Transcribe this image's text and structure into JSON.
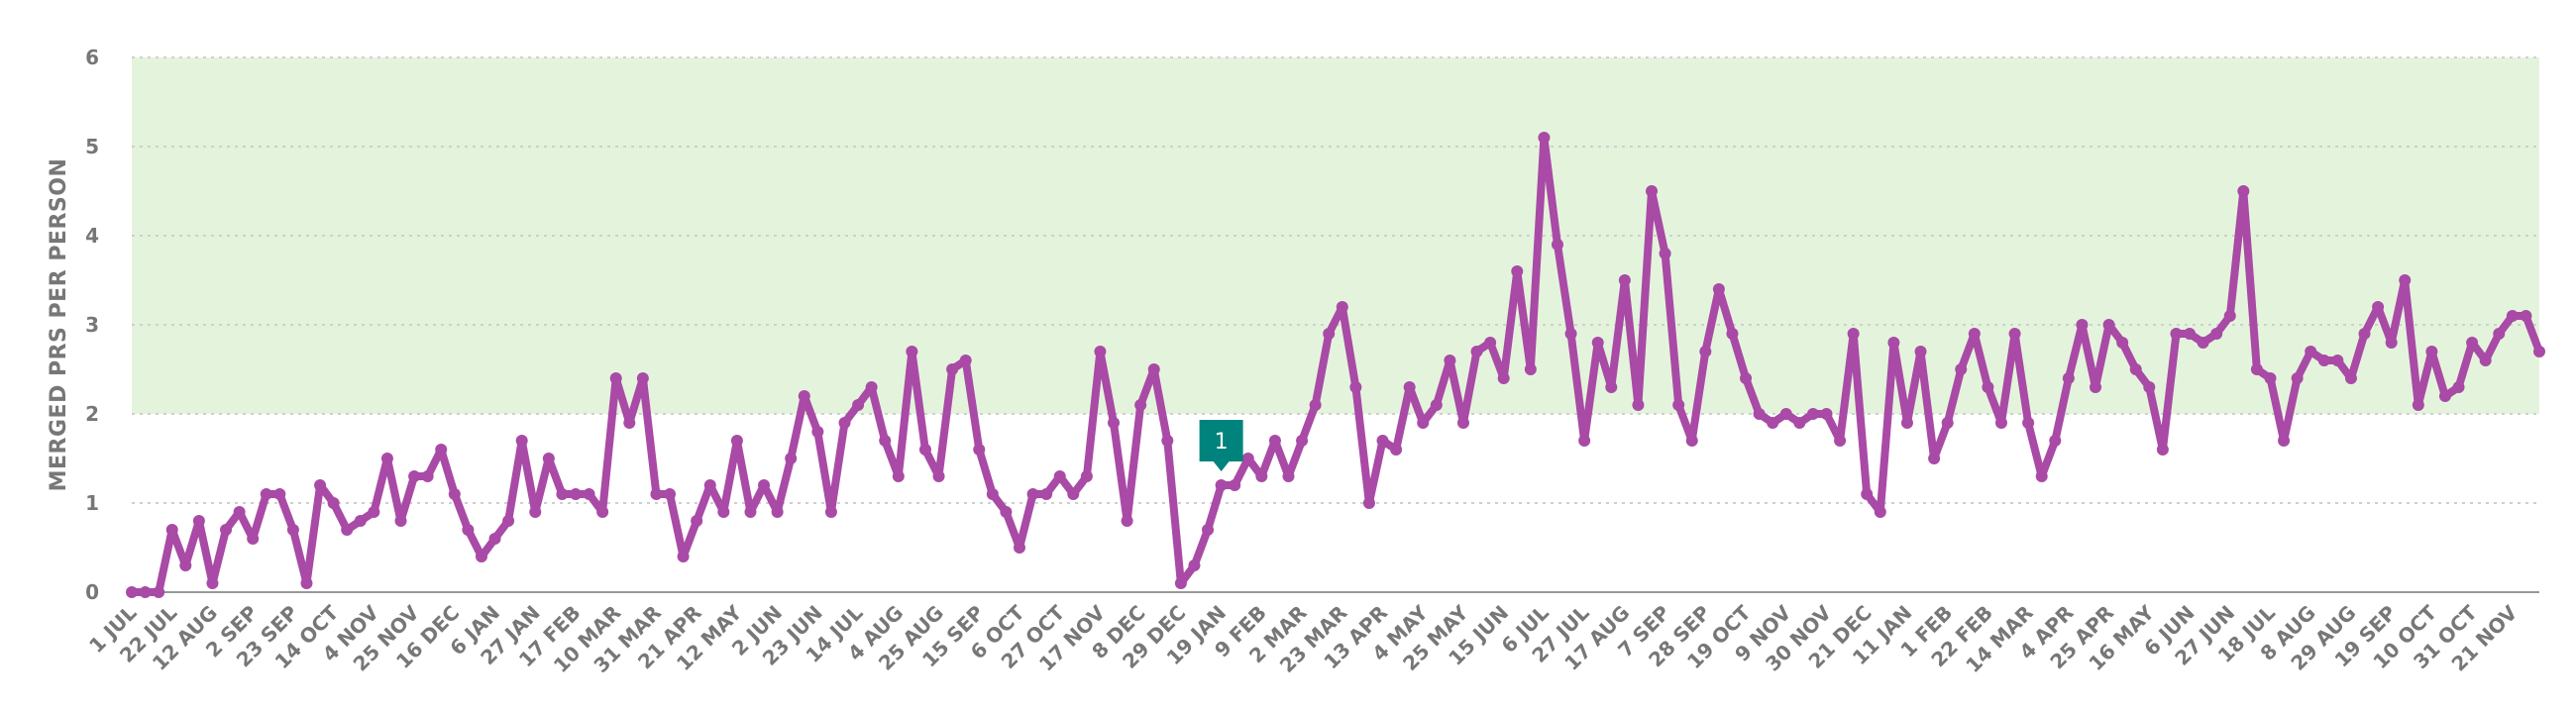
{
  "chart_data": {
    "type": "line",
    "title": "",
    "xlabel": "",
    "ylabel": "MERGED PRS PER PERSON",
    "ylim": [
      0,
      6
    ],
    "yticks": [
      "0",
      "1",
      "2",
      "3",
      "4",
      "5",
      "6"
    ],
    "grid": "horizontal dotted",
    "target_band": {
      "from": 2,
      "to": 6,
      "color": "#e4f4dc"
    },
    "line_color": "#a94aa6",
    "marker_color": "#00837c",
    "annotation": {
      "label": "1",
      "index": 81
    },
    "x_tick_labels": [
      "1 JUL",
      "22 JUL",
      "12 AUG",
      "2 SEP",
      "23 SEP",
      "14 OCT",
      "4 NOV",
      "25 NOV",
      "16 DEC",
      "6 JAN",
      "27 JAN",
      "17 FEB",
      "10 MAR",
      "31 MAR",
      "21 APR",
      "12 MAY",
      "2 JUN",
      "23 JUN",
      "14 JUL",
      "4 AUG",
      "25 AUG",
      "15 SEP",
      "6 OCT",
      "27 OCT",
      "17 NOV",
      "8 DEC",
      "29 DEC",
      "19 JAN",
      "9 FEB",
      "2 MAR",
      "23 MAR",
      "13 APR",
      "4 MAY",
      "25 MAY",
      "15 JUN",
      "6 JUL",
      "27 JUL",
      "17 AUG",
      "7 SEP",
      "28 SEP",
      "19 OCT",
      "9 NOV",
      "30 NOV",
      "21 DEC",
      "11 JAN",
      "1 FEB",
      "22 FEB",
      "14 MAR",
      "4 APR",
      "25 APR",
      "16 MAY",
      "6 JUN",
      "27 JUN",
      "18 JUL",
      "8 AUG",
      "29 AUG",
      "19 SEP",
      "10 OCT",
      "31 OCT",
      "21 NOV"
    ],
    "values": [
      0,
      0,
      0,
      0.7,
      0.3,
      0.8,
      0.1,
      0.7,
      0.9,
      0.6,
      1.1,
      1.1,
      0.7,
      0.1,
      1.2,
      1.0,
      0.7,
      0.8,
      0.9,
      1.5,
      0.8,
      1.3,
      1.3,
      1.6,
      1.1,
      0.7,
      0.4,
      0.6,
      0.8,
      1.7,
      0.9,
      1.5,
      1.1,
      1.1,
      1.1,
      0.9,
      2.4,
      1.9,
      2.4,
      1.1,
      1.1,
      0.4,
      0.8,
      1.2,
      0.9,
      1.7,
      0.9,
      1.2,
      0.9,
      1.5,
      2.2,
      1.8,
      0.9,
      1.9,
      2.1,
      2.3,
      1.7,
      1.3,
      2.7,
      1.6,
      1.3,
      2.5,
      2.6,
      1.6,
      1.1,
      0.9,
      0.5,
      1.1,
      1.1,
      1.3,
      1.1,
      1.3,
      2.7,
      1.9,
      0.8,
      2.1,
      2.5,
      1.7,
      0.1,
      0.3,
      0.7,
      1.2,
      1.2,
      1.5,
      1.3,
      1.7,
      1.3,
      1.7,
      2.1,
      2.9,
      3.2,
      2.3,
      1.0,
      1.7,
      1.6,
      2.3,
      1.9,
      2.1,
      2.6,
      1.9,
      2.7,
      2.8,
      2.4,
      3.6,
      2.5,
      5.1,
      3.9,
      2.9,
      1.7,
      2.8,
      2.3,
      3.5,
      2.1,
      4.5,
      3.8,
      2.1,
      1.7,
      2.7,
      3.4,
      2.9,
      2.4,
      2.0,
      1.9,
      2.0,
      1.9,
      2.0,
      2.0,
      1.7,
      2.9,
      1.1,
      0.9,
      2.8,
      1.9,
      2.7,
      1.5,
      1.9,
      2.5,
      2.9,
      2.3,
      1.9,
      2.9,
      1.9,
      1.3,
      1.7,
      2.4,
      3.0,
      2.3,
      3.0,
      2.8,
      2.5,
      2.3,
      1.6,
      2.9,
      2.9,
      2.8,
      2.9,
      3.1,
      4.5,
      2.5,
      2.4,
      1.7,
      2.4,
      2.7,
      2.6,
      2.6,
      2.4,
      2.9,
      3.2,
      2.8,
      3.5,
      2.1,
      2.7,
      2.2,
      2.3,
      2.8,
      2.6,
      2.9,
      3.1,
      3.1,
      2.7
    ]
  }
}
